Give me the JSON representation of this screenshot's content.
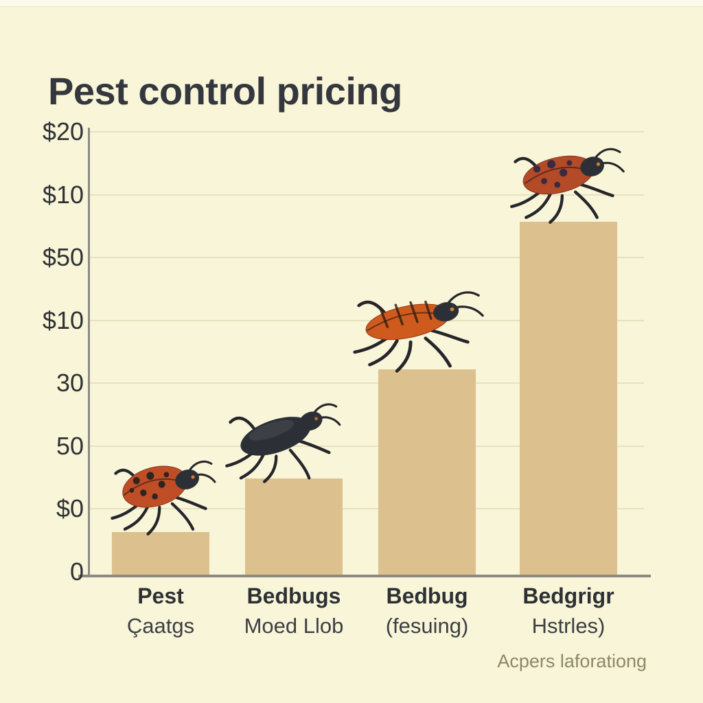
{
  "colors": {
    "background": "#f8f5d8",
    "background_top_strip": "#fbfaea",
    "bar": "#dcc18e",
    "axis": "#8b8b84",
    "gridline": "#e7e1c0",
    "title_text": "#34383e",
    "tick_text": "#2f3234",
    "category_primary": "#2e3134",
    "category_secondary": "#3b3f44",
    "caption_text": "#8f8668",
    "bug_red": "#bf4e27",
    "bug_orange": "#cf5a1e",
    "bug_brown": "#b34a28",
    "bug_dark": "#2c3036",
    "bug_spot": "#2f2420",
    "bug_spot_purple": "#3c2b40",
    "bug_eye": "#c8803c"
  },
  "chart_data": {
    "type": "bar",
    "title": "Pest control pricing",
    "caption": "Acpers laforationg",
    "y_tick_labels": [
      "$20",
      "$10",
      "$50",
      "$10",
      "30",
      "50",
      "$0",
      "0"
    ],
    "grid": true,
    "legend": "none",
    "xlabel": "",
    "ylabel": "",
    "categories": [
      {
        "label_line1": "Pest",
        "label_line2": "Çaatgs"
      },
      {
        "label_line1": "Bedbugs",
        "label_line2": "Moed Llob"
      },
      {
        "label_line1": "Bedbug",
        "label_line2": "(fesuing)"
      },
      {
        "label_line1": "Bedgrigr",
        "label_line2": "Hstrles)"
      }
    ],
    "bar_heights_pct_of_axis": [
      9.5,
      21.5,
      46,
      79
    ],
    "bar_color_note": "tan bars on cream background",
    "bugs": [
      "ladybug-icon",
      "black-beetle-icon",
      "orange-bedbug-icon",
      "brown-bedbug-icon"
    ]
  }
}
